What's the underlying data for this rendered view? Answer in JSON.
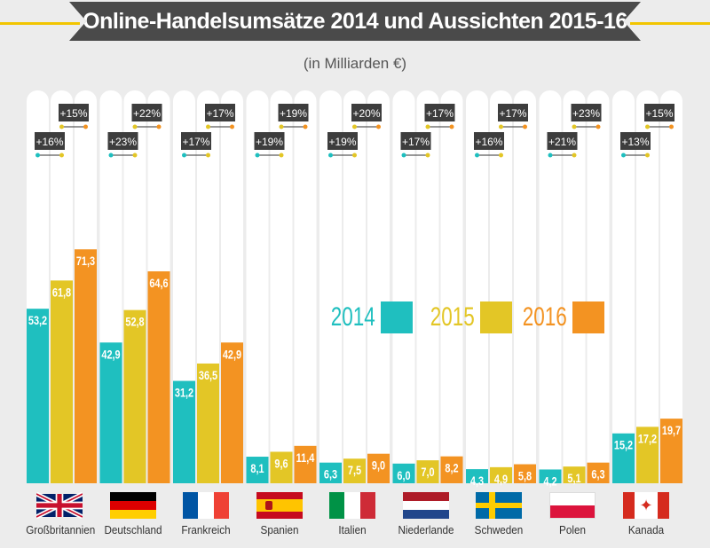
{
  "title": "Online-Handelsumsätze 2014 und Aussichten 2015-16",
  "subtitle": "(in Milliarden €)",
  "colors": {
    "y2014": "#1fbfbf",
    "y2015": "#e3c626",
    "y2016": "#f39322"
  },
  "legend": [
    {
      "label": "2014",
      "color": "#1fbfbf"
    },
    {
      "label": "2015",
      "color": "#e3c626"
    },
    {
      "label": "2016",
      "color": "#f39322"
    }
  ],
  "chart_data": {
    "type": "bar",
    "title": "Online-Handelsumsätze 2014 und Aussichten 2015-16",
    "subtitle": "(in Milliarden €)",
    "categories": [
      "Großbritannien",
      "Deutschland",
      "Frankreich",
      "Spanien",
      "Italien",
      "Niederlande",
      "Schweden",
      "Polen",
      "Kanada"
    ],
    "series": [
      {
        "name": "2014",
        "values": [
          53.2,
          42.9,
          31.2,
          8.1,
          6.3,
          6.0,
          4.3,
          4.2,
          15.2
        ],
        "labels": [
          "53,2",
          "42,9",
          "31,2",
          "8,1",
          "6,3",
          "6,0",
          "4,3",
          "4,2",
          "15,2"
        ]
      },
      {
        "name": "2015",
        "values": [
          61.8,
          52.8,
          36.5,
          9.6,
          7.5,
          7.0,
          4.9,
          5.1,
          17.2
        ],
        "labels": [
          "61,8",
          "52,8",
          "36,5",
          "9,6",
          "7,5",
          "7,0",
          "4,9",
          "5,1",
          "17,2"
        ]
      },
      {
        "name": "2016",
        "values": [
          71.3,
          64.6,
          42.9,
          11.4,
          9.0,
          8.2,
          5.8,
          6.3,
          19.7
        ],
        "labels": [
          "71,3",
          "64,6",
          "42,9",
          "11,4",
          "9,0",
          "8,2",
          "5,8",
          "6,3",
          "19,7"
        ]
      }
    ],
    "growth_2014_2015": [
      "+16%",
      "+23%",
      "+17%",
      "+19%",
      "+19%",
      "+17%",
      "+16%",
      "+21%",
      "+13%"
    ],
    "growth_2015_2016": [
      "+15%",
      "+22%",
      "+17%",
      "+19%",
      "+20%",
      "+17%",
      "+17%",
      "+23%",
      "+15%"
    ],
    "flags": [
      "uk",
      "germany",
      "france",
      "spain",
      "italy",
      "netherlands",
      "sweden",
      "poland",
      "canada"
    ]
  }
}
